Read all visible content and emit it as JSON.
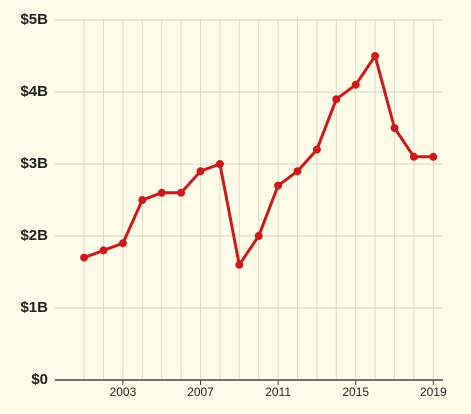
{
  "chart_data": {
    "type": "line",
    "x": [
      2001,
      2002,
      2003,
      2004,
      2005,
      2006,
      2007,
      2008,
      2009,
      2010,
      2011,
      2012,
      2013,
      2014,
      2015,
      2016,
      2017,
      2018,
      2019
    ],
    "series": [
      {
        "color": "#cc1a1a",
        "values": [
          1.7,
          1.8,
          1.9,
          2.5,
          2.6,
          2.6,
          2.9,
          3.0,
          1.6,
          2.0,
          2.7,
          2.9,
          3.2,
          3.9,
          4.1,
          4.5,
          3.5,
          3.1,
          3.1
        ]
      }
    ],
    "xlim": [
      1999.5,
      2019.5
    ],
    "xticks": [
      2003,
      2007,
      2011,
      2015,
      2019
    ],
    "ylim": [
      0,
      5
    ],
    "yticks": [
      {
        "value": 0,
        "label": "$0"
      },
      {
        "value": 1,
        "label": "$1B"
      },
      {
        "value": 2,
        "label": "$2B"
      },
      {
        "value": 3,
        "label": "$3B"
      },
      {
        "value": 4,
        "label": "$4B"
      },
      {
        "value": 5,
        "label": "$5B"
      }
    ],
    "grid": true
  }
}
